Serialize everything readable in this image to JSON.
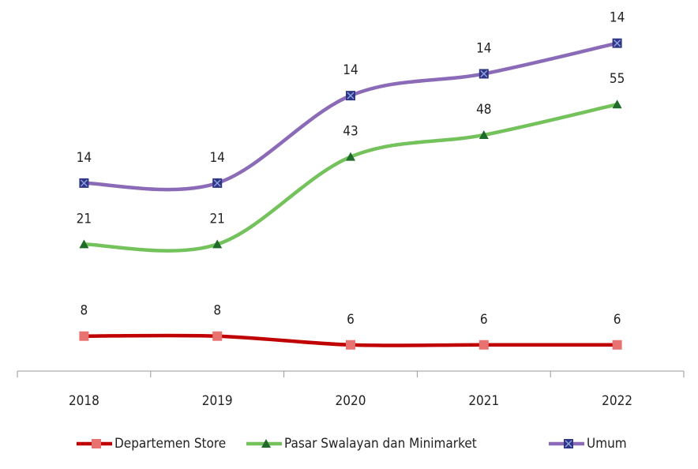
{
  "chart_data": {
    "type": "line",
    "stacked": true,
    "x": [
      "2018",
      "2019",
      "2020",
      "2021",
      "2022"
    ],
    "series": [
      {
        "name": "Departemen Store",
        "color": "#c00000",
        "marker_color": "#e8726f",
        "marker": "square",
        "values": [
          8,
          8,
          6,
          6,
          6
        ]
      },
      {
        "name": "Pasar Swalayan dan Minimarket",
        "color": "#74c25c",
        "marker_color": "#1f6b2a",
        "marker": "triangle",
        "values": [
          21,
          21,
          43,
          48,
          55
        ]
      },
      {
        "name": "Umum",
        "color": "#8b6bb8",
        "marker_color": "#2f3585",
        "marker": "xsquare",
        "values": [
          14,
          14,
          14,
          14,
          14
        ]
      }
    ],
    "ylim": [
      0,
      80
    ],
    "grid": false,
    "legend": "bottom"
  }
}
